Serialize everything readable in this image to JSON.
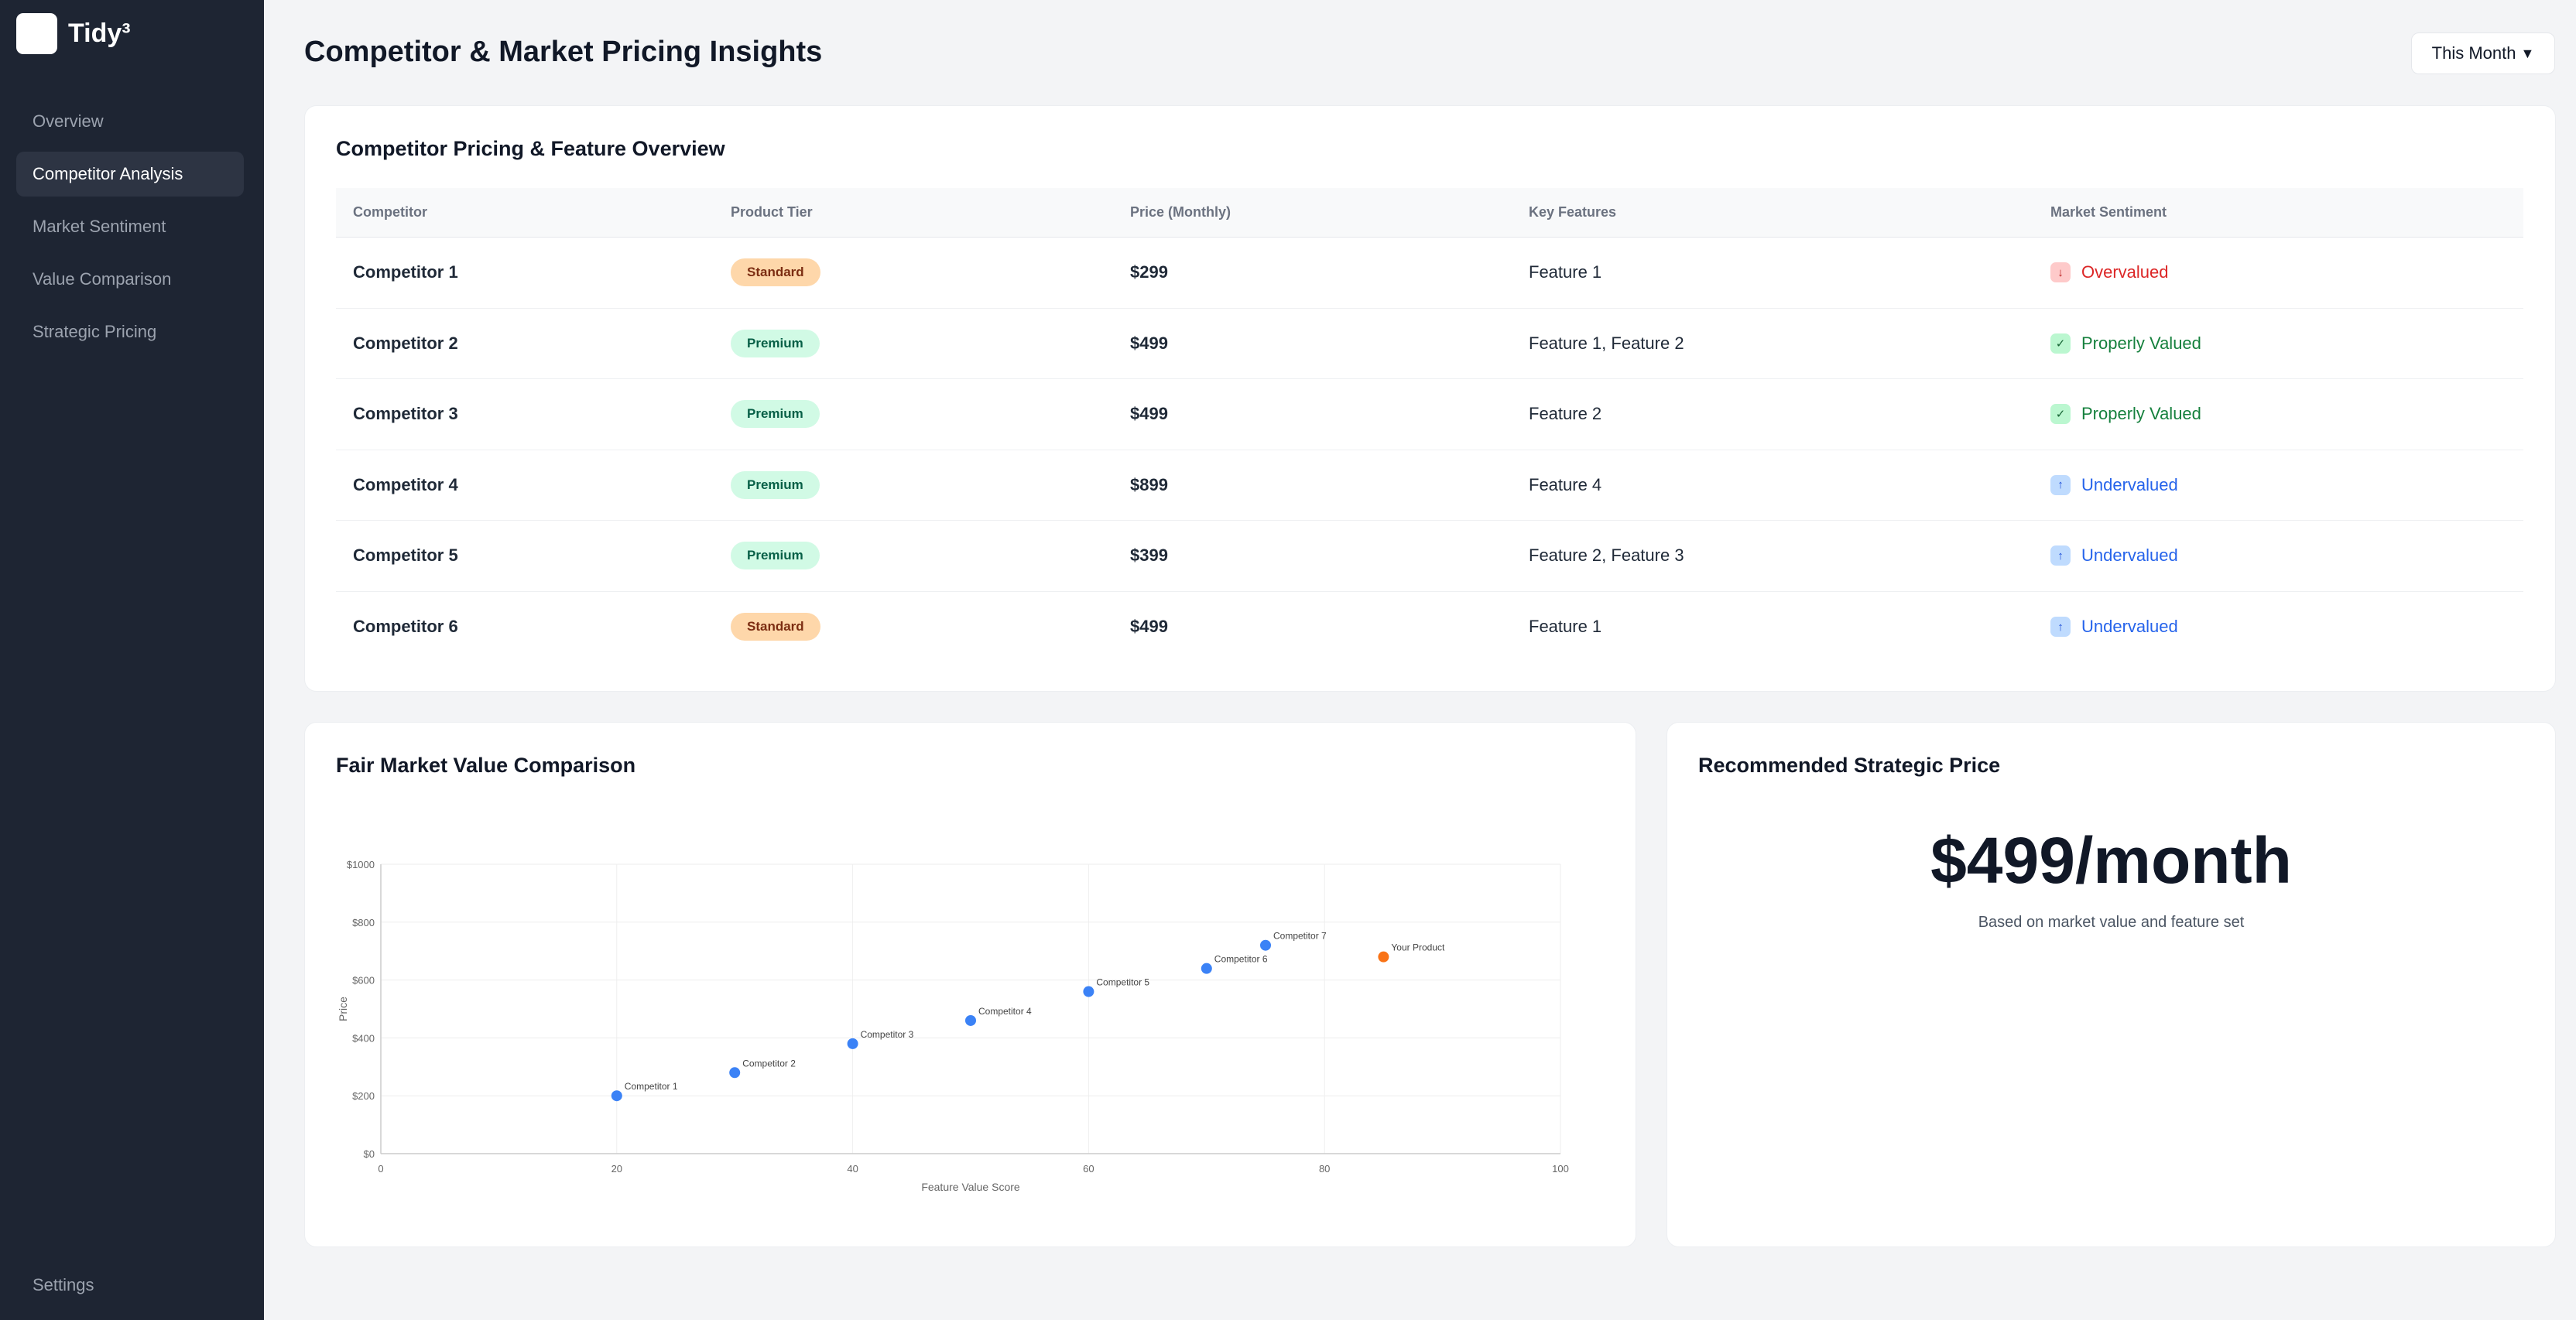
{
  "app": {
    "name": "Tidy³"
  },
  "sidebar": {
    "items": [
      {
        "label": "Overview"
      },
      {
        "label": "Competitor Analysis"
      },
      {
        "label": "Market Sentiment"
      },
      {
        "label": "Value Comparison"
      },
      {
        "label": "Strategic Pricing"
      }
    ],
    "active_index": 1,
    "settings_label": "Settings"
  },
  "header": {
    "title": "Competitor & Market Pricing Insights",
    "period_label": "This Month",
    "period_caret": "▼"
  },
  "pricing_table": {
    "title": "Competitor Pricing & Feature Overview",
    "columns": [
      "Competitor",
      "Product Tier",
      "Price (Monthly)",
      "Key Features",
      "Market Sentiment"
    ],
    "rows": [
      {
        "competitor": "Competitor 1",
        "tier": "Standard",
        "price": "$299",
        "features": "Feature 1",
        "sentiment": "Overvalued",
        "sentiment_icon": "arrow-down-icon",
        "sentiment_glyph": "↓"
      },
      {
        "competitor": "Competitor 2",
        "tier": "Premium",
        "price": "$499",
        "features": "Feature 1, Feature 2",
        "sentiment": "Properly Valued",
        "sentiment_icon": "check-icon",
        "sentiment_glyph": "✓"
      },
      {
        "competitor": "Competitor 3",
        "tier": "Premium",
        "price": "$499",
        "features": "Feature 2",
        "sentiment": "Properly Valued",
        "sentiment_icon": "check-icon",
        "sentiment_glyph": "✓"
      },
      {
        "competitor": "Competitor 4",
        "tier": "Premium",
        "price": "$899",
        "features": "Feature 4",
        "sentiment": "Undervalued",
        "sentiment_icon": "arrow-up-icon",
        "sentiment_glyph": "↑"
      },
      {
        "competitor": "Competitor 5",
        "tier": "Premium",
        "price": "$399",
        "features": "Feature 2, Feature 3",
        "sentiment": "Undervalued",
        "sentiment_icon": "arrow-up-icon",
        "sentiment_glyph": "↑"
      },
      {
        "competitor": "Competitor 6",
        "tier": "Standard",
        "price": "$499",
        "features": "Feature 1",
        "sentiment": "Undervalued",
        "sentiment_icon": "arrow-up-icon",
        "sentiment_glyph": "↑"
      }
    ]
  },
  "fmv_chart": {
    "title": "Fair Market Value Comparison"
  },
  "chart_data": {
    "type": "scatter",
    "xlabel": "Feature Value Score",
    "ylabel": "Price",
    "xlim": [
      0,
      100
    ],
    "ylim": [
      0,
      1000
    ],
    "x_ticks": [
      "0",
      "20",
      "40",
      "60",
      "80",
      "100"
    ],
    "y_ticks": [
      "$0",
      "$200",
      "$400",
      "$600",
      "$800",
      "$1000"
    ],
    "grid": true,
    "points": [
      {
        "label": "Competitor 1",
        "x": 20,
        "y": 200,
        "color": "#3b82f6"
      },
      {
        "label": "Competitor 2",
        "x": 30,
        "y": 280,
        "color": "#3b82f6"
      },
      {
        "label": "Competitor 3",
        "x": 40,
        "y": 380,
        "color": "#3b82f6"
      },
      {
        "label": "Competitor 4",
        "x": 50,
        "y": 460,
        "color": "#3b82f6"
      },
      {
        "label": "Competitor 5",
        "x": 60,
        "y": 560,
        "color": "#3b82f6"
      },
      {
        "label": "Competitor 6",
        "x": 70,
        "y": 640,
        "color": "#3b82f6"
      },
      {
        "label": "Competitor 7",
        "x": 75,
        "y": 720,
        "color": "#3b82f6"
      },
      {
        "label": "Your Product",
        "x": 85,
        "y": 680,
        "color": "#f97316"
      }
    ]
  },
  "recommendation": {
    "title": "Recommended Strategic Price",
    "price": "$499/month",
    "note": "Based on market value and feature set"
  }
}
